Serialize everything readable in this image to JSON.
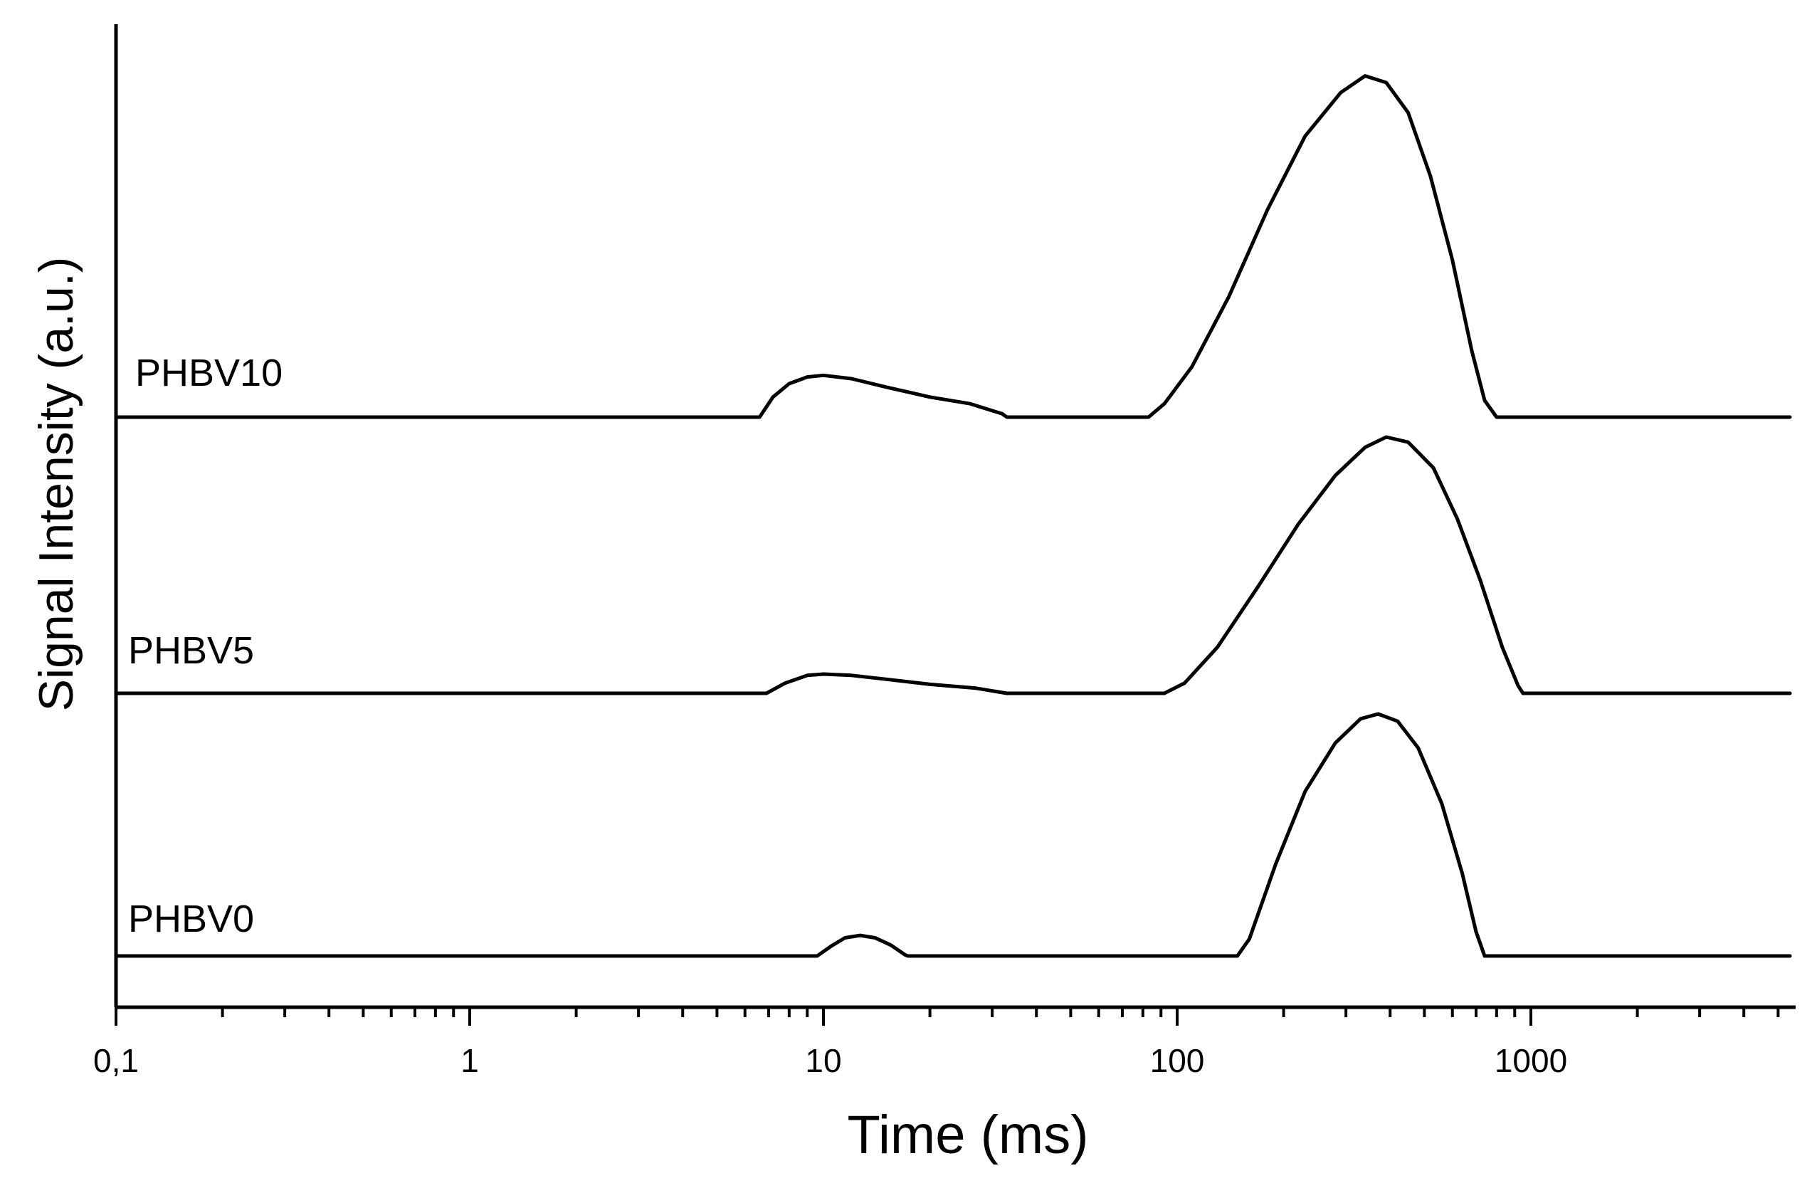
{
  "chart_data": {
    "type": "line",
    "title": "",
    "xlabel": "Time (ms)",
    "ylabel": "Signal Intensity (a.u.)",
    "xscale": "log",
    "xlim": [
      0.1,
      5500
    ],
    "x_ticks": [
      {
        "value": 0.1,
        "label": "0,1"
      },
      {
        "value": 1,
        "label": "1"
      },
      {
        "value": 10,
        "label": "10"
      },
      {
        "value": 100,
        "label": "100"
      },
      {
        "value": 1000,
        "label": "1000"
      }
    ],
    "y_ticks_shown": false,
    "grid": false,
    "legend": "none (series labelled directly above each trace)",
    "color": "#000000",
    "series": [
      {
        "name": "PHBV10",
        "offset": 2,
        "points": [
          [
            0.1,
            0
          ],
          [
            6.6,
            0
          ],
          [
            7.2,
            0.06
          ],
          [
            8.0,
            0.1
          ],
          [
            9.0,
            0.12
          ],
          [
            10.0,
            0.125
          ],
          [
            12.0,
            0.115
          ],
          [
            15.0,
            0.09
          ],
          [
            20.0,
            0.06
          ],
          [
            26.0,
            0.04
          ],
          [
            32.0,
            0.01
          ],
          [
            33.0,
            0
          ],
          [
            83.0,
            0
          ],
          [
            92.0,
            0.04
          ],
          [
            110.0,
            0.15
          ],
          [
            140.0,
            0.36
          ],
          [
            180.0,
            0.62
          ],
          [
            230.0,
            0.84
          ],
          [
            290.0,
            0.97
          ],
          [
            340.0,
            1.02
          ],
          [
            390.0,
            1.0
          ],
          [
            450.0,
            0.91
          ],
          [
            520.0,
            0.72
          ],
          [
            600.0,
            0.47
          ],
          [
            680.0,
            0.2
          ],
          [
            740.0,
            0.05
          ],
          [
            800.0,
            0
          ],
          [
            5400.0,
            0
          ]
        ]
      },
      {
        "name": "PHBV5",
        "offset": 1,
        "points": [
          [
            0.1,
            0
          ],
          [
            6.9,
            0
          ],
          [
            7.8,
            0.04
          ],
          [
            9.0,
            0.07
          ],
          [
            10.0,
            0.075
          ],
          [
            12.0,
            0.07
          ],
          [
            15.0,
            0.055
          ],
          [
            20.0,
            0.035
          ],
          [
            27.0,
            0.02
          ],
          [
            33.0,
            0
          ],
          [
            92.0,
            0
          ],
          [
            105.0,
            0.04
          ],
          [
            130.0,
            0.18
          ],
          [
            170.0,
            0.42
          ],
          [
            220.0,
            0.66
          ],
          [
            280.0,
            0.85
          ],
          [
            340.0,
            0.96
          ],
          [
            390.0,
            1.0
          ],
          [
            450.0,
            0.98
          ],
          [
            530.0,
            0.88
          ],
          [
            620.0,
            0.68
          ],
          [
            720.0,
            0.44
          ],
          [
            830.0,
            0.18
          ],
          [
            920.0,
            0.03
          ],
          [
            950.0,
            0
          ],
          [
            5400.0,
            0
          ]
        ]
      },
      {
        "name": "PHBV0",
        "offset": 0,
        "points": [
          [
            0.1,
            0
          ],
          [
            9.6,
            0
          ],
          [
            10.5,
            0.04
          ],
          [
            11.5,
            0.075
          ],
          [
            12.7,
            0.085
          ],
          [
            14.0,
            0.075
          ],
          [
            15.5,
            0.045
          ],
          [
            17.0,
            0.005
          ],
          [
            17.3,
            0
          ],
          [
            148.0,
            0
          ],
          [
            160.0,
            0.07
          ],
          [
            190.0,
            0.38
          ],
          [
            230.0,
            0.68
          ],
          [
            280.0,
            0.88
          ],
          [
            330.0,
            0.98
          ],
          [
            370.0,
            1.0
          ],
          [
            420.0,
            0.97
          ],
          [
            480.0,
            0.86
          ],
          [
            560.0,
            0.63
          ],
          [
            640.0,
            0.34
          ],
          [
            700.0,
            0.1
          ],
          [
            740.0,
            0
          ],
          [
            5400.0,
            0
          ]
        ]
      }
    ]
  }
}
